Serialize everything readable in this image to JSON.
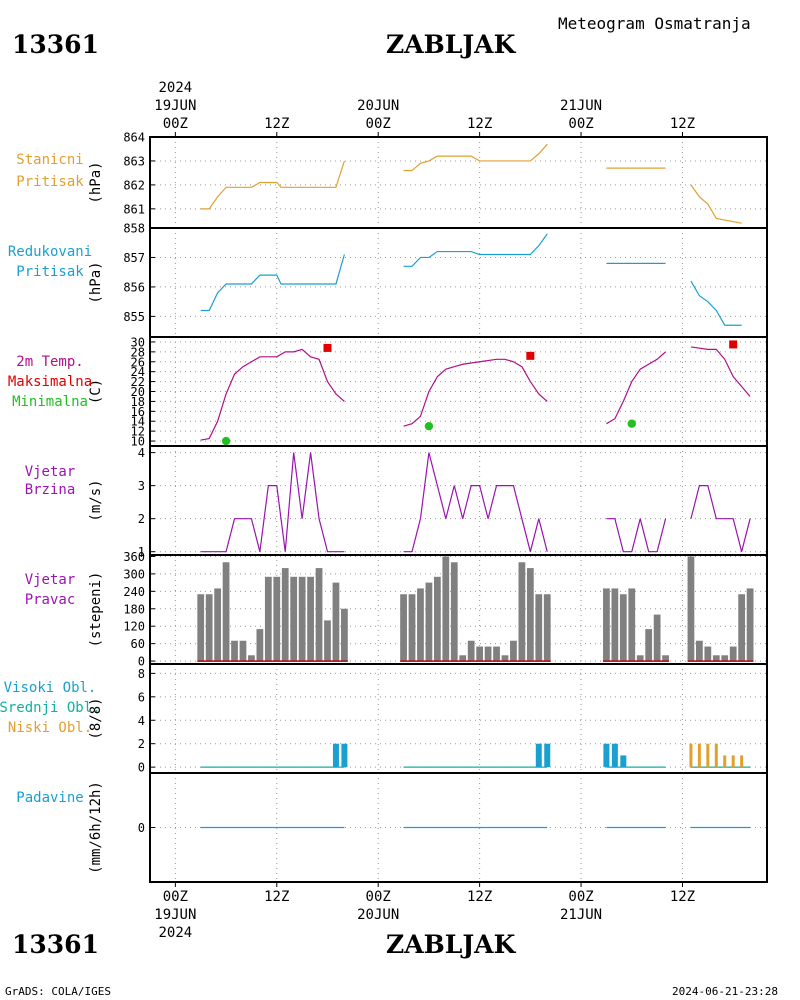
{
  "header": {
    "station_id": "13361",
    "station_name": "ZABLJAK",
    "title": "Meteogram Osmatranja"
  },
  "footer": {
    "station_id": "13361",
    "station_name": "ZABLJAK",
    "credit": "GrADS: COLA/IGES",
    "timestamp": "2024-06-21-23:28"
  },
  "time_axis": {
    "top_year": "2024",
    "bottom_year": "2024",
    "ticks": [
      {
        "hours": 0,
        "label": "00Z",
        "date": "19JUN"
      },
      {
        "hours": 12,
        "label": "12Z",
        "date": ""
      },
      {
        "hours": 24,
        "label": "00Z",
        "date": "20JUN"
      },
      {
        "hours": 36,
        "label": "12Z",
        "date": ""
      },
      {
        "hours": 48,
        "label": "00Z",
        "date": "21JUN"
      },
      {
        "hours": 60,
        "label": "12Z",
        "date": ""
      }
    ],
    "range_hours": [
      -3,
      70
    ]
  },
  "colors": {
    "station_pressure": "#e0a030",
    "reduced_pressure": "#1aa0d0",
    "temperature": "#b0108a",
    "max_temp": "#e00000",
    "min_temp": "#20c020",
    "wind": "#9a14b0",
    "bars": "#808080",
    "cloud_high": "#1aa0d0",
    "cloud_mid": "#10b0a0",
    "cloud_low": "#e0a030",
    "precip": "#1aa0d0",
    "red_baseline": "#c00000"
  },
  "chart_data": [
    {
      "type": "line",
      "panel": "station_pressure",
      "labels": [
        "Stanicni",
        "Pritisak"
      ],
      "unit": "(hPa)",
      "ylim": [
        860.2,
        864
      ],
      "yticks": [
        861,
        862,
        863,
        864
      ],
      "grid": true,
      "series": [
        {
          "segments": [
            [
              [
                3,
                861
              ],
              [
                4,
                861
              ],
              [
                5,
                861.5
              ],
              [
                6,
                861.9
              ],
              [
                9,
                861.9
              ],
              [
                10,
                862.1
              ],
              [
                12,
                862.1
              ],
              [
                12.5,
                861.9
              ],
              [
                19,
                861.9
              ],
              [
                20,
                863
              ]
            ],
            [
              [
                27,
                862.6
              ],
              [
                28,
                862.6
              ],
              [
                29,
                862.9
              ],
              [
                30,
                863
              ],
              [
                31,
                863.2
              ],
              [
                35,
                863.2
              ],
              [
                36,
                863
              ],
              [
                42,
                863
              ],
              [
                43,
                863.3
              ],
              [
                44,
                863.7
              ]
            ],
            [
              [
                51,
                862.7
              ],
              [
                58,
                862.7
              ]
            ],
            [
              [
                61,
                862
              ],
              [
                62,
                861.5
              ],
              [
                63,
                861.2
              ],
              [
                64,
                860.6
              ],
              [
                67,
                860.4
              ]
            ]
          ]
        }
      ]
    },
    {
      "type": "line",
      "panel": "reduced_pressure",
      "labels": [
        "Redukovani",
        "Pritisak"
      ],
      "unit": "(hPa)",
      "ylim": [
        854.3,
        858
      ],
      "yticks": [
        855,
        856,
        857,
        858
      ],
      "grid": true,
      "series": [
        {
          "segments": [
            [
              [
                3,
                855.2
              ],
              [
                4,
                855.2
              ],
              [
                5,
                855.8
              ],
              [
                6,
                856.1
              ],
              [
                9,
                856.1
              ],
              [
                10,
                856.4
              ],
              [
                12,
                856.4
              ],
              [
                12.5,
                856.1
              ],
              [
                19,
                856.1
              ],
              [
                20,
                857.1
              ]
            ],
            [
              [
                27,
                856.7
              ],
              [
                28,
                856.7
              ],
              [
                29,
                857
              ],
              [
                30,
                857
              ],
              [
                31,
                857.2
              ],
              [
                35,
                857.2
              ],
              [
                36,
                857.1
              ],
              [
                42,
                857.1
              ],
              [
                43,
                857.4
              ],
              [
                44,
                857.8
              ]
            ],
            [
              [
                51,
                856.8
              ],
              [
                58,
                856.8
              ]
            ],
            [
              [
                61,
                856.2
              ],
              [
                62,
                855.7
              ],
              [
                63,
                855.5
              ],
              [
                64,
                855.2
              ],
              [
                65,
                854.7
              ],
              [
                67,
                854.7
              ]
            ]
          ]
        }
      ]
    },
    {
      "type": "line",
      "panel": "temperature",
      "labels": [
        "2m Temp.",
        "Maksimalna",
        "Minimalna"
      ],
      "unit": "(C)",
      "ylim": [
        9,
        31
      ],
      "yticks": [
        10,
        12,
        14,
        16,
        18,
        20,
        22,
        24,
        26,
        28,
        30
      ],
      "grid": true,
      "series": [
        {
          "segments": [
            [
              [
                3,
                10.2
              ],
              [
                4,
                10.5
              ],
              [
                5,
                14
              ],
              [
                6,
                19.5
              ],
              [
                7,
                23.5
              ],
              [
                8,
                25
              ],
              [
                9,
                26
              ],
              [
                10,
                27
              ],
              [
                12,
                27
              ],
              [
                13,
                28
              ],
              [
                14,
                28
              ],
              [
                15,
                28.5
              ],
              [
                16,
                27
              ],
              [
                17,
                26.5
              ],
              [
                18,
                22
              ],
              [
                19,
                19.5
              ],
              [
                20,
                18
              ]
            ],
            [
              [
                27,
                13
              ],
              [
                28,
                13.5
              ],
              [
                29,
                15
              ],
              [
                30,
                20
              ],
              [
                31,
                23
              ],
              [
                32,
                24.5
              ],
              [
                33,
                25
              ],
              [
                34,
                25.5
              ],
              [
                36,
                26
              ],
              [
                38,
                26.5
              ],
              [
                39,
                26.5
              ],
              [
                40,
                26
              ],
              [
                41,
                25
              ],
              [
                42,
                22
              ],
              [
                43,
                19.5
              ],
              [
                44,
                18
              ]
            ],
            [
              [
                51,
                13.5
              ],
              [
                52,
                14.5
              ],
              [
                53,
                18
              ],
              [
                54,
                22
              ],
              [
                55,
                24.5
              ],
              [
                57,
                26.5
              ],
              [
                58,
                28
              ]
            ],
            [
              [
                61,
                29
              ],
              [
                63,
                28.5
              ],
              [
                64,
                28.5
              ],
              [
                65,
                26.5
              ],
              [
                66,
                23
              ],
              [
                67,
                21
              ],
              [
                68,
                19
              ]
            ]
          ]
        }
      ],
      "max_points": [
        [
          18,
          28.8
        ],
        [
          42,
          27.2
        ],
        [
          66,
          29.5
        ]
      ],
      "min_points": [
        [
          6,
          10
        ],
        [
          30,
          13
        ],
        [
          54,
          13.5
        ]
      ]
    },
    {
      "type": "line",
      "panel": "wind_speed",
      "labels": [
        "Vjetar",
        "Brzina"
      ],
      "unit": "(m/s)",
      "ylim": [
        0.9,
        4.2
      ],
      "yticks": [
        1,
        2,
        3,
        4
      ],
      "grid": true,
      "series": [
        {
          "segments": [
            [
              [
                3,
                1
              ],
              [
                6,
                1
              ],
              [
                7,
                2
              ],
              [
                9,
                2
              ],
              [
                10,
                1
              ],
              [
                11,
                3
              ],
              [
                12,
                3
              ],
              [
                13,
                1
              ],
              [
                14,
                4
              ],
              [
                15,
                2
              ],
              [
                16,
                4
              ],
              [
                17,
                2
              ],
              [
                18,
                1
              ],
              [
                20,
                1
              ]
            ],
            [
              [
                27,
                1
              ],
              [
                28,
                1
              ],
              [
                29,
                2
              ],
              [
                30,
                4
              ],
              [
                31,
                3
              ],
              [
                32,
                2
              ],
              [
                33,
                3
              ],
              [
                34,
                2
              ],
              [
                35,
                3
              ],
              [
                36,
                3
              ],
              [
                37,
                2
              ],
              [
                38,
                3
              ],
              [
                40,
                3
              ],
              [
                41,
                2
              ],
              [
                42,
                1
              ],
              [
                43,
                2
              ],
              [
                44,
                1
              ]
            ],
            [
              [
                51,
                2
              ],
              [
                52,
                2
              ],
              [
                53,
                1
              ],
              [
                54,
                1
              ],
              [
                55,
                2
              ],
              [
                56,
                1
              ],
              [
                57,
                1
              ],
              [
                58,
                2
              ]
            ],
            [
              [
                61,
                2
              ],
              [
                62,
                3
              ],
              [
                63,
                3
              ],
              [
                64,
                2
              ],
              [
                66,
                2
              ],
              [
                67,
                1
              ],
              [
                68,
                2
              ]
            ]
          ]
        }
      ]
    },
    {
      "type": "bar",
      "panel": "wind_direction",
      "labels": [
        "Vjetar",
        "Pravac"
      ],
      "unit": "(stepeni)",
      "ylim": [
        -10,
        365
      ],
      "yticks": [
        0,
        60,
        120,
        180,
        240,
        300,
        360
      ],
      "grid": true,
      "x": [
        3,
        4,
        5,
        6,
        7,
        8,
        9,
        10,
        11,
        12,
        13,
        14,
        15,
        16,
        17,
        18,
        19,
        20,
        27,
        28,
        29,
        30,
        31,
        32,
        33,
        34,
        35,
        36,
        37,
        38,
        39,
        40,
        41,
        42,
        43,
        44,
        51,
        52,
        53,
        54,
        55,
        56,
        57,
        58,
        61,
        62,
        63,
        64,
        65,
        66,
        67,
        68
      ],
      "values": [
        230,
        230,
        250,
        340,
        70,
        70,
        20,
        110,
        290,
        290,
        320,
        290,
        290,
        290,
        320,
        140,
        270,
        180,
        230,
        230,
        250,
        270,
        290,
        360,
        340,
        20,
        70,
        50,
        50,
        50,
        20,
        70,
        340,
        320,
        230,
        230,
        250,
        250,
        230,
        250,
        20,
        110,
        160,
        20,
        360,
        70,
        50,
        20,
        20,
        50,
        230,
        250
      ]
    },
    {
      "type": "bar",
      "panel": "clouds",
      "labels": [
        "Visoki Obl.",
        "Srednji Obl.",
        "Niski Obl."
      ],
      "unit": "(8/8)",
      "ylim": [
        -0.5,
        8.8
      ],
      "yticks": [
        0,
        2,
        4,
        6,
        8
      ],
      "grid": true,
      "series": [
        {
          "name": "Visoki Obl.",
          "x": [
            19,
            20,
            43,
            44,
            51,
            52,
            53
          ],
          "values": [
            2,
            2,
            2,
            2,
            2,
            2,
            1
          ]
        },
        {
          "name": "Niski Obl.",
          "x": [
            61,
            62,
            63,
            64,
            65,
            66,
            67
          ],
          "values": [
            2,
            2,
            2,
            2,
            1,
            1,
            1
          ]
        }
      ]
    },
    {
      "type": "line",
      "panel": "precipitation",
      "labels": [
        "Padavine"
      ],
      "unit": "(mm/6h/12h)",
      "ylim": [
        -4.5,
        4.5
      ],
      "yticks": [
        0
      ],
      "grid": true,
      "series": [
        {
          "segments": [
            [
              [
                3,
                0
              ],
              [
                20,
                0
              ]
            ],
            [
              [
                27,
                0
              ],
              [
                44,
                0
              ]
            ],
            [
              [
                51,
                0
              ],
              [
                58,
                0
              ]
            ],
            [
              [
                61,
                0
              ],
              [
                68,
                0
              ]
            ]
          ]
        }
      ]
    }
  ]
}
